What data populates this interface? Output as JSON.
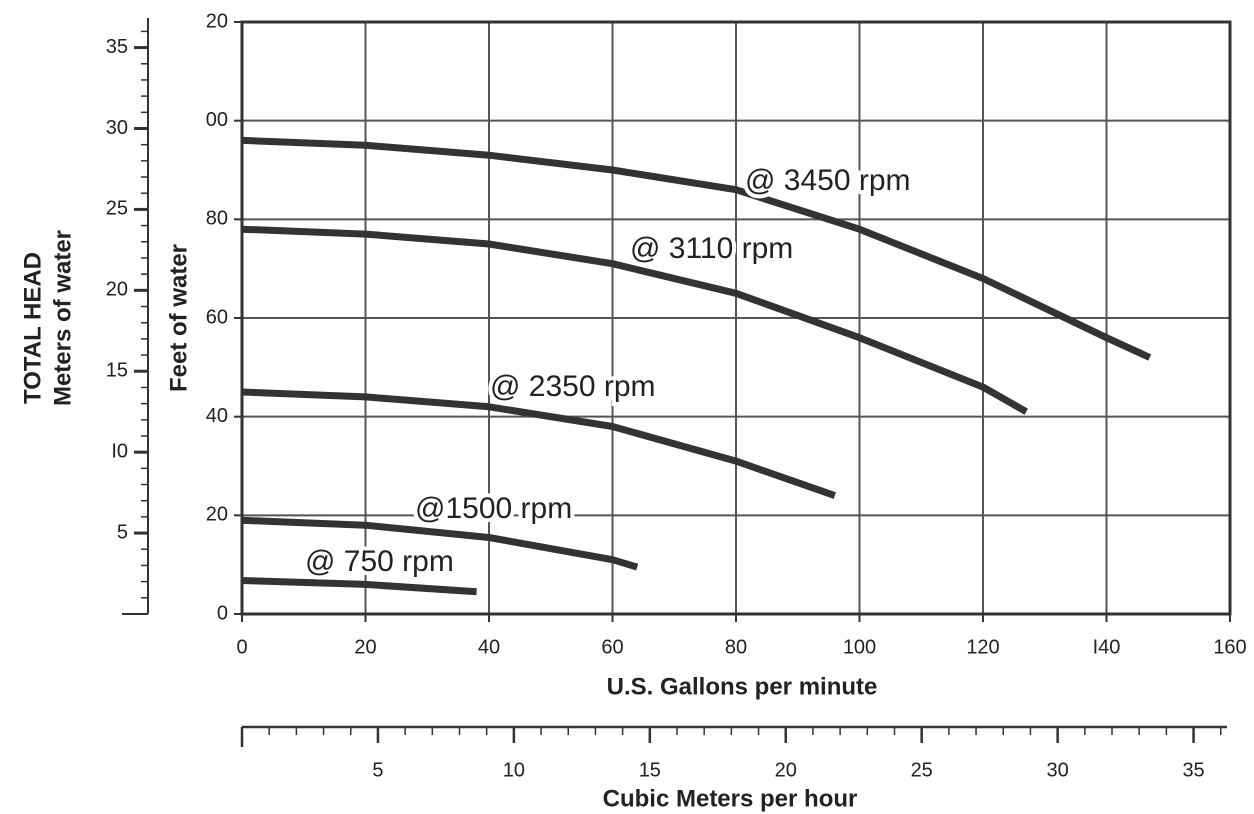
{
  "chart_data": {
    "type": "line",
    "xlabel": "U.S. Gallons per minute",
    "ylabel": "Feet of water",
    "y2label_top": "TOTAL HEAD",
    "y2label": "Meters of water",
    "x2label": "Cubic Meters per hour",
    "xlim": [
      0,
      160
    ],
    "xticks": [
      0,
      20,
      40,
      60,
      80,
      100,
      120,
      {
        "value": 140,
        "label": "I40"
      },
      160
    ],
    "ylim": [
      0,
      120
    ],
    "yticks": [
      0,
      20,
      40,
      60,
      80,
      {
        "value": 100,
        "label": "00"
      },
      {
        "value": 120,
        "label": "20"
      }
    ],
    "y2lim": [
      0,
      36.58
    ],
    "y2ticks": [
      5,
      {
        "value": 10,
        "label": "I0"
      },
      15,
      20,
      25,
      30,
      35
    ],
    "y2_minor_step": 1,
    "x2lim": [
      0,
      36.34
    ],
    "x2ticks": [
      5,
      10,
      15,
      20,
      25,
      30,
      35
    ],
    "x2_minor_step": 1,
    "grid": true,
    "series": [
      {
        "name": "@ 3450 rpm",
        "color": "#333333",
        "x": [
          0,
          20,
          40,
          60,
          80,
          100,
          120,
          140,
          147
        ],
        "values": [
          96,
          95,
          93,
          90,
          86,
          78,
          68,
          56,
          52
        ]
      },
      {
        "name": "@ 3110 rpm",
        "color": "#333333",
        "x": [
          0,
          20,
          40,
          60,
          80,
          100,
          120,
          127
        ],
        "values": [
          78,
          77,
          75,
          71,
          65,
          56,
          46,
          41
        ]
      },
      {
        "name": "@ 2350 rpm",
        "color": "#333333",
        "x": [
          0,
          20,
          40,
          60,
          80,
          96
        ],
        "values": [
          45,
          44,
          42,
          38,
          31,
          24
        ]
      },
      {
        "name": "@1500 rpm",
        "color": "#333333",
        "x": [
          0,
          20,
          40,
          60,
          64
        ],
        "values": [
          19,
          18,
          15.5,
          11,
          9.5
        ]
      },
      {
        "name": "@ 750 rpm",
        "color": "#333333",
        "x": [
          0,
          20,
          38
        ],
        "values": [
          6.8,
          6,
          4.5
        ]
      }
    ]
  }
}
